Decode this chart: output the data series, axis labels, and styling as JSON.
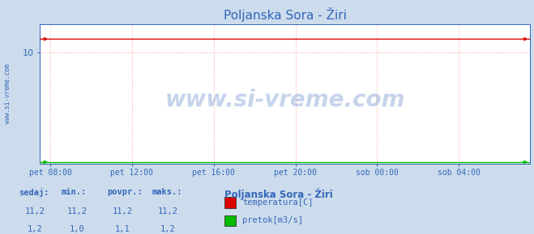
{
  "title": "Poljanska Sora - Žiri",
  "bg_color": "#ccdcec",
  "plot_bg_color": "#ffffff",
  "x_tick_labels": [
    "pet 08:00",
    "pet 12:00",
    "pet 16:00",
    "pet 20:00",
    "sob 00:00",
    "sob 04:00"
  ],
  "x_tick_positions": [
    0,
    240,
    480,
    720,
    960,
    1200
  ],
  "x_min": -30,
  "x_max": 1410,
  "y_min": 0,
  "y_max": 12.5,
  "y_ticks": [
    10
  ],
  "temp_value": 11.2,
  "flow_y": 0.15,
  "temp_color": "#dd0000",
  "flow_color": "#00bb00",
  "grid_color": "#ffaaaa",
  "watermark": "www.si-vreme.com",
  "watermark_color": "#3366bb",
  "watermark_alpha": 0.28,
  "sidebar_text": "www.si-vreme.com",
  "sidebar_color": "#3366bb",
  "title_color": "#3366bb",
  "title_fontsize": 11,
  "tick_color": "#3366bb",
  "legend_title": "Poljanska Sora - Žiri",
  "legend_title_color": "#3366bb",
  "legend_labels": [
    "temperatura[C]",
    "pretok[m3/s]"
  ],
  "legend_colors": [
    "#dd0000",
    "#00bb00"
  ],
  "stat_headers": [
    "sedaj:",
    "min.:",
    "povpr.:",
    "maks.:"
  ],
  "stat_values_temp": [
    "11,2",
    "11,2",
    "11,2",
    "11,2"
  ],
  "stat_values_flow": [
    "1,2",
    "1,0",
    "1,1",
    "1,2"
  ],
  "stat_color": "#3366bb"
}
